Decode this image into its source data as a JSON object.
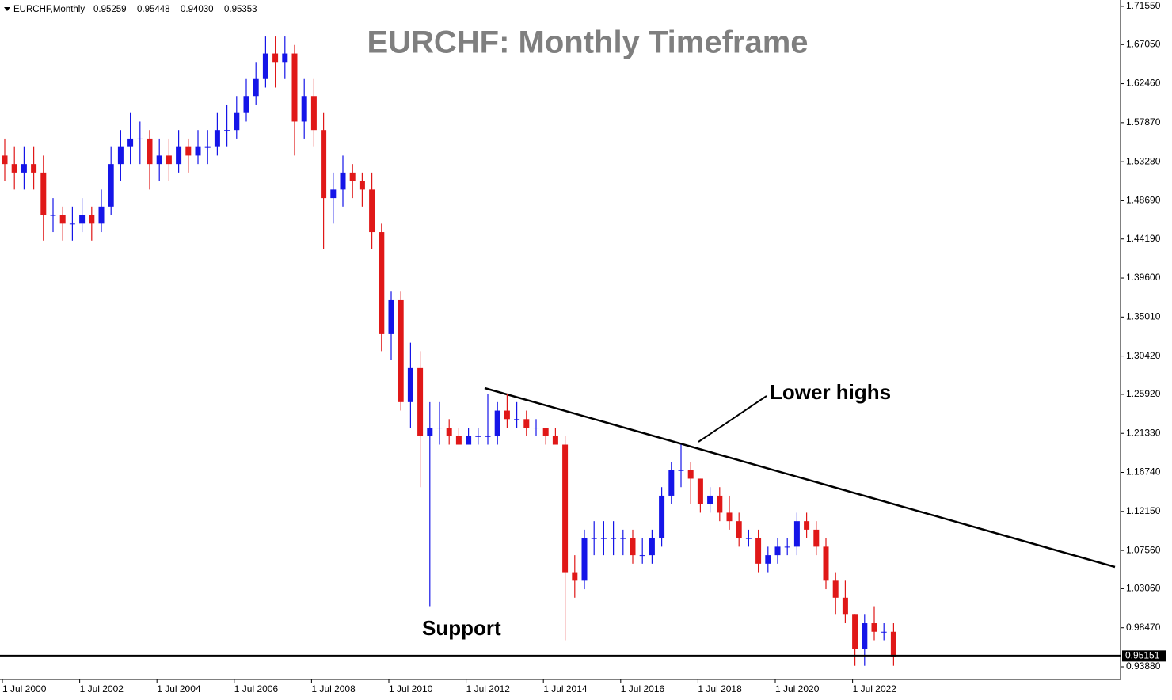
{
  "chart_data": {
    "type": "candlestick",
    "symbol": "EURCHF,Monthly",
    "header_values": [
      "0.95259",
      "0.95448",
      "0.94030",
      "0.95353"
    ],
    "title": "EURCHF: Monthly Timeframe",
    "annotations": {
      "lower_highs": "Lower highs",
      "support": "Support"
    },
    "current_price": 0.95151,
    "up_color": "#1515e8",
    "down_color": "#e01818",
    "ylim": [
      0.9239,
      1.7229
    ],
    "yticks": [
      {
        "value": 1.7155,
        "label": "1.71550"
      },
      {
        "value": 1.6705,
        "label": "1.67050"
      },
      {
        "value": 1.6246,
        "label": "1.62460"
      },
      {
        "value": 1.5787,
        "label": "1.57870"
      },
      {
        "value": 1.5328,
        "label": "1.53280"
      },
      {
        "value": 1.4869,
        "label": "1.48690"
      },
      {
        "value": 1.4419,
        "label": "1.44190"
      },
      {
        "value": 1.396,
        "label": "1.39600"
      },
      {
        "value": 1.3501,
        "label": "1.35010"
      },
      {
        "value": 1.3042,
        "label": "1.30420"
      },
      {
        "value": 1.2592,
        "label": "1.25920"
      },
      {
        "value": 1.2133,
        "label": "1.21330"
      },
      {
        "value": 1.1674,
        "label": "1.16740"
      },
      {
        "value": 1.1215,
        "label": "1.12150"
      },
      {
        "value": 1.0756,
        "label": "1.07560"
      },
      {
        "value": 1.0306,
        "label": "1.03060"
      },
      {
        "value": 0.9847,
        "label": "0.98470"
      },
      {
        "value": 0.9388,
        "label": "0.93880"
      }
    ],
    "categories": [
      "1 Jul 2000",
      null,
      null,
      null,
      null,
      null,
      null,
      null,
      "1 Jul 2002",
      null,
      null,
      null,
      null,
      null,
      null,
      null,
      "1 Jul 2004",
      null,
      null,
      null,
      null,
      null,
      null,
      null,
      "1 Jul 2006",
      null,
      null,
      null,
      null,
      null,
      null,
      null,
      "1 Jul 2008",
      null,
      null,
      null,
      null,
      null,
      null,
      null,
      "1 Jul 2010",
      null,
      null,
      null,
      null,
      null,
      null,
      null,
      "1 Jul 2012",
      null,
      null,
      null,
      null,
      null,
      null,
      null,
      "1 Jul 2014",
      null,
      null,
      null,
      null,
      null,
      null,
      null,
      "1 Jul 2016",
      null,
      null,
      null,
      null,
      null,
      null,
      null,
      "1 Jul 2018",
      null,
      null,
      null,
      null,
      null,
      null,
      null,
      "1 Jul 2020",
      null,
      null,
      null,
      null,
      null,
      null,
      null,
      "1 Jul 2022",
      null,
      null,
      null,
      null
    ],
    "open": [
      1.54,
      1.53,
      1.52,
      1.53,
      1.52,
      1.47,
      1.47,
      1.46,
      1.46,
      1.47,
      1.46,
      1.48,
      1.53,
      1.55,
      1.56,
      1.56,
      1.53,
      1.54,
      1.53,
      1.55,
      1.54,
      1.55,
      1.55,
      1.57,
      1.57,
      1.59,
      1.61,
      1.63,
      1.66,
      1.65,
      1.66,
      1.58,
      1.61,
      1.57,
      1.49,
      1.5,
      1.52,
      1.51,
      1.5,
      1.45,
      1.33,
      1.37,
      1.25,
      1.29,
      1.21,
      1.22,
      1.22,
      1.21,
      1.2,
      1.21,
      1.21,
      1.21,
      1.24,
      1.23,
      1.23,
      1.22,
      1.22,
      1.21,
      1.2,
      1.05,
      1.04,
      1.09,
      1.09,
      1.09,
      1.09,
      1.09,
      1.07,
      1.07,
      1.09,
      1.14,
      1.17,
      1.17,
      1.16,
      1.13,
      1.14,
      1.12,
      1.11,
      1.09,
      1.09,
      1.06,
      1.07,
      1.08,
      1.08,
      1.11,
      1.1,
      1.08,
      1.04,
      1.02,
      1.0,
      0.96,
      0.99,
      0.98,
      0.98
    ],
    "high": [
      1.56,
      1.55,
      1.55,
      1.55,
      1.54,
      1.49,
      1.48,
      1.48,
      1.49,
      1.48,
      1.5,
      1.55,
      1.57,
      1.59,
      1.58,
      1.57,
      1.56,
      1.56,
      1.57,
      1.56,
      1.57,
      1.57,
      1.59,
      1.6,
      1.61,
      1.63,
      1.65,
      1.68,
      1.68,
      1.68,
      1.67,
      1.63,
      1.63,
      1.59,
      1.52,
      1.54,
      1.53,
      1.52,
      1.52,
      1.46,
      1.38,
      1.38,
      1.32,
      1.31,
      1.25,
      1.25,
      1.23,
      1.22,
      1.22,
      1.22,
      1.26,
      1.25,
      1.26,
      1.25,
      1.24,
      1.23,
      1.22,
      1.22,
      1.21,
      1.07,
      1.1,
      1.11,
      1.11,
      1.11,
      1.1,
      1.1,
      1.09,
      1.1,
      1.15,
      1.18,
      1.2,
      1.18,
      1.16,
      1.15,
      1.15,
      1.14,
      1.12,
      1.1,
      1.1,
      1.08,
      1.09,
      1.09,
      1.12,
      1.12,
      1.11,
      1.09,
      1.05,
      1.04,
      1.0,
      1.0,
      1.01,
      0.99,
      0.99
    ],
    "low": [
      1.51,
      1.5,
      1.5,
      1.5,
      1.44,
      1.45,
      1.44,
      1.44,
      1.45,
      1.44,
      1.45,
      1.47,
      1.51,
      1.53,
      1.53,
      1.5,
      1.51,
      1.51,
      1.52,
      1.52,
      1.53,
      1.53,
      1.54,
      1.55,
      1.56,
      1.58,
      1.6,
      1.62,
      1.62,
      1.63,
      1.54,
      1.56,
      1.55,
      1.43,
      1.46,
      1.48,
      1.49,
      1.48,
      1.43,
      1.31,
      1.3,
      1.24,
      1.22,
      1.15,
      1.01,
      1.2,
      1.2,
      1.2,
      1.2,
      1.2,
      1.2,
      1.2,
      1.22,
      1.22,
      1.21,
      1.21,
      1.2,
      1.2,
      0.97,
      1.02,
      1.03,
      1.07,
      1.07,
      1.07,
      1.07,
      1.06,
      1.06,
      1.06,
      1.08,
      1.13,
      1.15,
      1.13,
      1.12,
      1.12,
      1.11,
      1.1,
      1.08,
      1.08,
      1.05,
      1.05,
      1.06,
      1.07,
      1.07,
      1.09,
      1.07,
      1.03,
      1.0,
      0.99,
      0.94,
      0.94,
      0.97,
      0.97,
      0.94
    ],
    "close": [
      1.53,
      1.52,
      1.53,
      1.52,
      1.47,
      1.47,
      1.46,
      1.46,
      1.47,
      1.46,
      1.48,
      1.53,
      1.55,
      1.56,
      1.56,
      1.53,
      1.54,
      1.53,
      1.55,
      1.54,
      1.55,
      1.55,
      1.57,
      1.57,
      1.59,
      1.61,
      1.63,
      1.66,
      1.65,
      1.66,
      1.58,
      1.61,
      1.57,
      1.49,
      1.5,
      1.52,
      1.51,
      1.5,
      1.45,
      1.33,
      1.37,
      1.25,
      1.29,
      1.21,
      1.22,
      1.22,
      1.21,
      1.2,
      1.21,
      1.21,
      1.21,
      1.24,
      1.23,
      1.23,
      1.22,
      1.22,
      1.21,
      1.2,
      1.05,
      1.04,
      1.09,
      1.09,
      1.09,
      1.09,
      1.09,
      1.07,
      1.07,
      1.09,
      1.14,
      1.17,
      1.17,
      1.16,
      1.13,
      1.14,
      1.12,
      1.11,
      1.09,
      1.09,
      1.06,
      1.07,
      1.08,
      1.08,
      1.11,
      1.1,
      1.08,
      1.04,
      1.02,
      1.0,
      0.96,
      0.99,
      0.98,
      0.98,
      0.95
    ]
  }
}
